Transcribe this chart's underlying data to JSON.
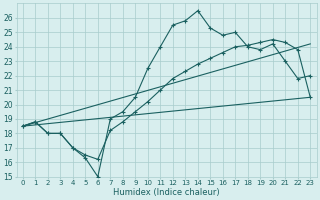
{
  "xlabel": "Humidex (Indice chaleur)",
  "xlim": [
    -0.5,
    23.5
  ],
  "ylim": [
    15,
    27
  ],
  "yticks": [
    15,
    16,
    17,
    18,
    19,
    20,
    21,
    22,
    23,
    24,
    25,
    26
  ],
  "xticks": [
    0,
    1,
    2,
    3,
    4,
    5,
    6,
    7,
    8,
    9,
    10,
    11,
    12,
    13,
    14,
    15,
    16,
    17,
    18,
    19,
    20,
    21,
    22,
    23
  ],
  "bg_color": "#d8eeee",
  "grid_color": "#a8cccc",
  "line_color": "#1a6060",
  "line1_x": [
    0,
    1,
    2,
    3,
    4,
    5,
    6,
    7,
    8,
    9,
    10,
    11,
    12,
    13,
    14,
    15,
    16,
    17,
    18,
    19,
    20,
    21,
    22,
    23
  ],
  "line1_y": [
    18.5,
    18.8,
    18.0,
    18.0,
    17.0,
    16.3,
    15.0,
    19.0,
    19.5,
    20.5,
    22.5,
    24.0,
    25.5,
    25.8,
    26.5,
    25.3,
    24.8,
    25.0,
    24.0,
    23.8,
    24.2,
    23.0,
    21.8,
    22.0
  ],
  "line2_x": [
    0,
    1,
    2,
    3,
    4,
    5,
    6,
    7,
    8,
    9,
    10,
    11,
    12,
    13,
    14,
    15,
    16,
    17,
    18,
    19,
    20,
    21,
    22,
    23
  ],
  "line2_y": [
    18.5,
    18.8,
    18.0,
    18.0,
    17.0,
    16.5,
    16.2,
    18.2,
    18.8,
    19.5,
    20.2,
    21.0,
    21.8,
    22.3,
    22.8,
    23.2,
    23.6,
    24.0,
    24.1,
    24.3,
    24.5,
    24.3,
    23.8,
    20.5
  ],
  "line3_x": [
    0,
    23
  ],
  "line3_y": [
    18.5,
    24.2
  ],
  "line4_x": [
    0,
    23
  ],
  "line4_y": [
    18.5,
    20.5
  ]
}
